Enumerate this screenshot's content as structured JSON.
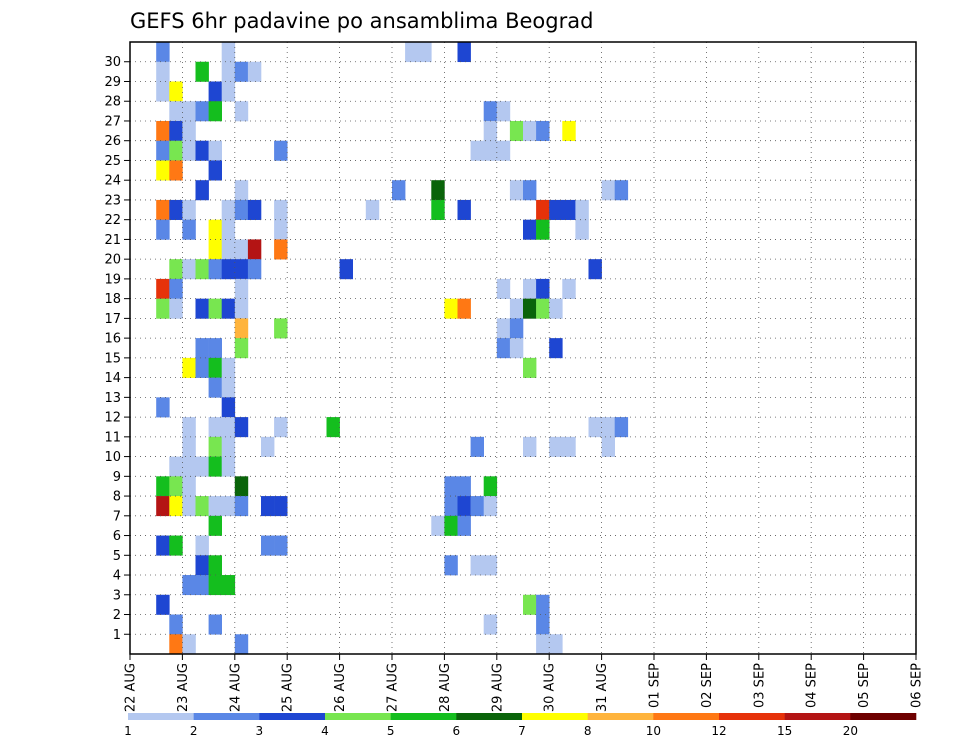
{
  "chart_data": {
    "type": "heatmap",
    "title": "GEFS 6hr padavine po ansamblima Beograd",
    "y_tick_labels": [
      "1",
      "2",
      "3",
      "4",
      "5",
      "6",
      "7",
      "8",
      "9",
      "10",
      "11",
      "12",
      "13",
      "14",
      "15",
      "16",
      "17",
      "18",
      "19",
      "20",
      "21",
      "22",
      "23",
      "24",
      "25",
      "26",
      "27",
      "28",
      "29",
      "30"
    ],
    "x_tick_labels": [
      "22 AUG",
      "23 AUG",
      "24 AUG",
      "25 AUG",
      "26 AUG",
      "27 AUG",
      "28 AUG",
      "29 AUG",
      "30 AUG",
      "31 AUG",
      "01 SEP",
      "02 SEP",
      "03 SEP",
      "04 SEP",
      "05 SEP",
      "06 SEP"
    ],
    "x_steps_per_day": 4,
    "legend_thresholds": [
      "1",
      "2",
      "3",
      "4",
      "5",
      "6",
      "7",
      "8",
      "10",
      "12",
      "15",
      "20"
    ],
    "legend_colors": [
      "#b4c8f0",
      "#5a87e6",
      "#1e46d2",
      "#78e650",
      "#14be1e",
      "#0a640a",
      "#ffff00",
      "#ffb43c",
      "#ff7814",
      "#e6320a",
      "#b41414",
      "#6e0000"
    ],
    "grid": "dotted",
    "cells": [
      [
        30,
        2,
        2
      ],
      [
        30,
        7,
        1
      ],
      [
        30,
        21,
        1
      ],
      [
        30,
        22,
        1
      ],
      [
        30,
        25,
        3
      ],
      [
        29,
        2,
        1
      ],
      [
        29,
        5,
        5
      ],
      [
        29,
        7,
        1
      ],
      [
        29,
        8,
        2
      ],
      [
        29,
        9,
        1
      ],
      [
        28,
        2,
        1
      ],
      [
        28,
        3,
        7
      ],
      [
        28,
        6,
        3
      ],
      [
        28,
        7,
        1
      ],
      [
        27,
        3,
        1
      ],
      [
        27,
        4,
        1
      ],
      [
        27,
        5,
        2
      ],
      [
        27,
        6,
        5
      ],
      [
        27,
        8,
        1
      ],
      [
        27,
        27,
        2
      ],
      [
        27,
        28,
        1
      ],
      [
        26,
        2,
        9
      ],
      [
        26,
        3,
        3
      ],
      [
        26,
        4,
        1
      ],
      [
        26,
        27,
        1
      ],
      [
        26,
        29,
        4
      ],
      [
        26,
        30,
        1
      ],
      [
        26,
        31,
        2
      ],
      [
        26,
        33,
        7
      ],
      [
        25,
        2,
        2
      ],
      [
        25,
        3,
        4
      ],
      [
        25,
        4,
        1
      ],
      [
        25,
        5,
        3
      ],
      [
        25,
        6,
        1
      ],
      [
        25,
        11,
        2
      ],
      [
        25,
        26,
        1
      ],
      [
        25,
        27,
        1
      ],
      [
        25,
        28,
        1
      ],
      [
        24,
        2,
        7
      ],
      [
        24,
        3,
        9
      ],
      [
        24,
        6,
        3
      ],
      [
        23,
        5,
        3
      ],
      [
        23,
        8,
        1
      ],
      [
        23,
        20,
        2
      ],
      [
        23,
        23,
        6
      ],
      [
        23,
        29,
        1
      ],
      [
        23,
        30,
        2
      ],
      [
        23,
        36,
        1
      ],
      [
        23,
        37,
        2
      ],
      [
        22,
        2,
        9
      ],
      [
        22,
        3,
        3
      ],
      [
        22,
        4,
        1
      ],
      [
        22,
        7,
        1
      ],
      [
        22,
        8,
        2
      ],
      [
        22,
        9,
        3
      ],
      [
        22,
        11,
        1
      ],
      [
        22,
        18,
        1
      ],
      [
        22,
        23,
        5
      ],
      [
        22,
        25,
        3
      ],
      [
        22,
        31,
        10
      ],
      [
        22,
        32,
        3
      ],
      [
        22,
        33,
        3
      ],
      [
        22,
        34,
        1
      ],
      [
        21,
        2,
        2
      ],
      [
        21,
        4,
        2
      ],
      [
        21,
        6,
        7
      ],
      [
        21,
        7,
        1
      ],
      [
        21,
        11,
        1
      ],
      [
        21,
        30,
        3
      ],
      [
        21,
        31,
        5
      ],
      [
        21,
        34,
        1
      ],
      [
        20,
        6,
        7
      ],
      [
        20,
        7,
        1
      ],
      [
        20,
        8,
        1
      ],
      [
        20,
        9,
        11
      ],
      [
        20,
        11,
        9
      ],
      [
        19,
        3,
        4
      ],
      [
        19,
        4,
        1
      ],
      [
        19,
        5,
        4
      ],
      [
        19,
        6,
        2
      ],
      [
        19,
        7,
        3
      ],
      [
        19,
        8,
        3
      ],
      [
        19,
        9,
        2
      ],
      [
        19,
        16,
        3
      ],
      [
        19,
        35,
        3
      ],
      [
        18,
        2,
        10
      ],
      [
        18,
        3,
        2
      ],
      [
        18,
        8,
        1
      ],
      [
        18,
        28,
        1
      ],
      [
        18,
        30,
        1
      ],
      [
        18,
        31,
        3
      ],
      [
        18,
        33,
        1
      ],
      [
        17,
        2,
        4
      ],
      [
        17,
        3,
        1
      ],
      [
        17,
        5,
        3
      ],
      [
        17,
        6,
        4
      ],
      [
        17,
        7,
        3
      ],
      [
        17,
        8,
        1
      ],
      [
        17,
        24,
        7
      ],
      [
        17,
        25,
        9
      ],
      [
        17,
        29,
        1
      ],
      [
        17,
        30,
        6
      ],
      [
        17,
        31,
        4
      ],
      [
        17,
        32,
        1
      ],
      [
        16,
        8,
        8
      ],
      [
        16,
        11,
        4
      ],
      [
        16,
        28,
        1
      ],
      [
        16,
        29,
        2
      ],
      [
        15,
        5,
        2
      ],
      [
        15,
        6,
        2
      ],
      [
        15,
        8,
        4
      ],
      [
        15,
        28,
        2
      ],
      [
        15,
        29,
        1
      ],
      [
        15,
        32,
        3
      ],
      [
        14,
        4,
        7
      ],
      [
        14,
        5,
        2
      ],
      [
        14,
        6,
        5
      ],
      [
        14,
        7,
        1
      ],
      [
        14,
        30,
        4
      ],
      [
        13,
        6,
        2
      ],
      [
        13,
        7,
        1
      ],
      [
        12,
        2,
        2
      ],
      [
        12,
        7,
        3
      ],
      [
        11,
        4,
        1
      ],
      [
        11,
        6,
        1
      ],
      [
        11,
        7,
        1
      ],
      [
        11,
        8,
        3
      ],
      [
        11,
        11,
        1
      ],
      [
        11,
        15,
        5
      ],
      [
        11,
        35,
        1
      ],
      [
        11,
        36,
        1
      ],
      [
        11,
        37,
        2
      ],
      [
        10,
        4,
        1
      ],
      [
        10,
        6,
        4
      ],
      [
        10,
        7,
        1
      ],
      [
        10,
        10,
        1
      ],
      [
        10,
        26,
        2
      ],
      [
        10,
        30,
        1
      ],
      [
        10,
        32,
        1
      ],
      [
        10,
        33,
        1
      ],
      [
        10,
        36,
        1
      ],
      [
        9,
        3,
        1
      ],
      [
        9,
        4,
        1
      ],
      [
        9,
        5,
        1
      ],
      [
        9,
        6,
        5
      ],
      [
        9,
        7,
        1
      ],
      [
        8,
        2,
        5
      ],
      [
        8,
        3,
        4
      ],
      [
        8,
        4,
        1
      ],
      [
        8,
        8,
        6
      ],
      [
        8,
        24,
        2
      ],
      [
        8,
        25,
        2
      ],
      [
        8,
        27,
        5
      ],
      [
        7,
        2,
        11
      ],
      [
        7,
        3,
        7
      ],
      [
        7,
        4,
        1
      ],
      [
        7,
        5,
        4
      ],
      [
        7,
        6,
        1
      ],
      [
        7,
        7,
        1
      ],
      [
        7,
        8,
        2
      ],
      [
        7,
        10,
        3
      ],
      [
        7,
        11,
        3
      ],
      [
        7,
        24,
        2
      ],
      [
        7,
        25,
        3
      ],
      [
        7,
        26,
        2
      ],
      [
        7,
        27,
        1
      ],
      [
        6,
        6,
        5
      ],
      [
        6,
        23,
        1
      ],
      [
        6,
        24,
        5
      ],
      [
        6,
        25,
        2
      ],
      [
        5,
        2,
        3
      ],
      [
        5,
        3,
        5
      ],
      [
        5,
        5,
        1
      ],
      [
        5,
        10,
        2
      ],
      [
        5,
        11,
        2
      ],
      [
        4,
        5,
        3
      ],
      [
        4,
        6,
        5
      ],
      [
        4,
        24,
        2
      ],
      [
        4,
        26,
        1
      ],
      [
        4,
        27,
        1
      ],
      [
        3,
        4,
        2
      ],
      [
        3,
        5,
        2
      ],
      [
        3,
        6,
        5
      ],
      [
        3,
        7,
        5
      ],
      [
        2,
        2,
        3
      ],
      [
        2,
        30,
        4
      ],
      [
        2,
        31,
        2
      ],
      [
        1,
        3,
        2
      ],
      [
        1,
        6,
        2
      ],
      [
        1,
        27,
        1
      ],
      [
        1,
        31,
        2
      ],
      [
        0,
        3,
        9
      ],
      [
        0,
        4,
        1
      ],
      [
        0,
        8,
        2
      ],
      [
        0,
        31,
        1
      ],
      [
        0,
        32,
        1
      ]
    ]
  }
}
